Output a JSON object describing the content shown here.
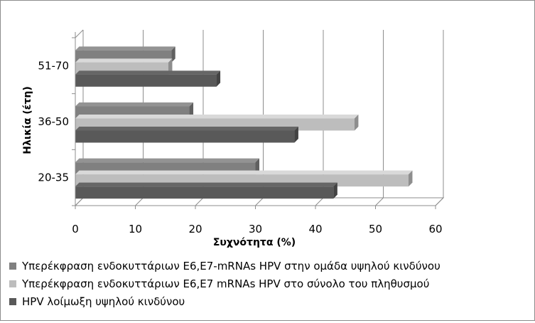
{
  "chart_data": {
    "type": "bar",
    "orientation": "horizontal",
    "three_d": true,
    "categories": [
      "20-35",
      "36-50",
      "51-70"
    ],
    "series": [
      {
        "name": "Υπερέκφραση ενδοκυττάριων Ε6,Ε7-mRNAs HPV στην ομάδα υψηλού κινδύνου",
        "values": [
          30,
          19,
          16
        ],
        "color": "#808080"
      },
      {
        "name": "Υπερέκφραση ενδοκυττάριων Ε6,Ε7 mRNAs HPV στο σύνολο του πληθυσμού",
        "values": [
          55.5,
          46.5,
          15.5
        ],
        "color": "#bdbdbd"
      },
      {
        "name": "HPV λοίμωξη υψηλού κινδύνου",
        "values": [
          43,
          36.5,
          23.5
        ],
        "color": "#595959"
      }
    ],
    "xlabel": "Συχνότητα (%)",
    "ylabel": "Ηλικία (έτη)",
    "xlim": [
      0,
      60
    ],
    "x_ticks": [
      0,
      10,
      20,
      30,
      40,
      50,
      60
    ],
    "grid": true,
    "legend_position": "bottom"
  }
}
